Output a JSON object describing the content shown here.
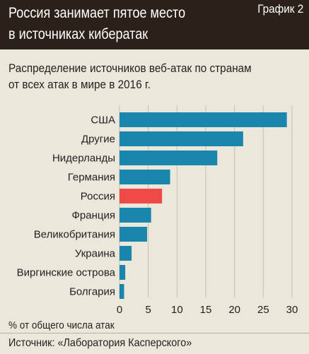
{
  "header": {
    "title_line1": "Россия занимает пятое место",
    "title_line2": "в источниках кибератак",
    "graph_tag": "График 2"
  },
  "chart_data": {
    "type": "bar",
    "orientation": "horizontal",
    "title": "Распределение источников веб-атак по странам от всех атак в мире в 2016 г.",
    "subtitle_line1": "Распределение источников веб-атак по странам",
    "subtitle_line2": "от всех атак в мире в 2016 г.",
    "categories": [
      "США",
      "Другие",
      "Нидерланды",
      "Германия",
      "Россия",
      "Франция",
      "Великобритания",
      "Украина",
      "Виргинские острова",
      "Болгария"
    ],
    "values": [
      29.1,
      21.5,
      17.0,
      8.8,
      7.4,
      5.5,
      4.8,
      2.1,
      1.0,
      0.8
    ],
    "highlight": "Россия",
    "colors": {
      "bar": "#1a86ad",
      "highlight": "#ee4a48",
      "grid": "#c7c1b5"
    },
    "xlim": [
      0,
      30
    ],
    "xticks": [
      "0",
      "5",
      "10",
      "15",
      "20",
      "25",
      "30"
    ],
    "xlabel": "% от общего числа атак",
    "grid": true
  },
  "footer": {
    "source": "Источник: «Лаборатория Касперского»"
  }
}
